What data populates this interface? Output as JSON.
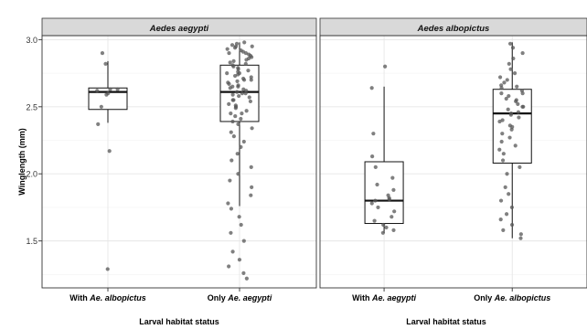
{
  "chart_data": {
    "type": "box",
    "ylabel": "Winglength (mm)",
    "ylim": [
      1.15,
      3.03
    ],
    "yticks": [
      1.5,
      2.0,
      2.5,
      3.0
    ],
    "grid": true,
    "panels": [
      {
        "title": "Aedes aegypti",
        "xlabel": "Larval habitat status",
        "groups": [
          {
            "label_prefix": "With ",
            "label_italic": "Ae. albopictus",
            "stats": {
              "whisker_low": 2.38,
              "q1": 2.48,
              "median": 2.61,
              "q3": 2.64,
              "whisker_high": 2.84
            },
            "points": [
              1.29,
              2.17,
              2.37,
              2.5,
              2.59,
              2.6,
              2.62,
              2.63,
              2.63,
              2.82,
              2.9
            ]
          },
          {
            "label_prefix": "Only ",
            "label_italic": "Ae. aegypti",
            "stats": {
              "whisker_low": 1.76,
              "q1": 2.39,
              "median": 2.61,
              "q3": 2.81,
              "whisker_high": 2.98
            },
            "points": [
              1.22,
              1.26,
              1.31,
              1.36,
              1.42,
              1.5,
              1.56,
              1.62,
              1.68,
              1.74,
              1.78,
              1.84,
              1.9,
              1.95,
              2.0,
              2.05,
              2.1,
              2.15,
              2.2,
              2.24,
              2.28,
              2.31,
              2.34,
              2.37,
              2.39,
              2.41,
              2.43,
              2.45,
              2.47,
              2.49,
              2.51,
              2.52,
              2.54,
              2.55,
              2.57,
              2.58,
              2.59,
              2.6,
              2.61,
              2.62,
              2.63,
              2.64,
              2.65,
              2.66,
              2.67,
              2.68,
              2.69,
              2.7,
              2.71,
              2.72,
              2.73,
              2.74,
              2.75,
              2.76,
              2.77,
              2.78,
              2.79,
              2.8,
              2.81,
              2.82,
              2.83,
              2.84,
              2.85,
              2.86,
              2.87,
              2.88,
              2.89,
              2.9,
              2.91,
              2.92,
              2.93,
              2.94,
              2.95,
              2.96,
              2.97,
              2.98,
              2.6,
              2.55,
              2.7,
              2.75,
              2.5,
              2.45,
              2.65,
              2.9,
              2.95
            ]
          }
        ]
      },
      {
        "title": "Aedes albopictus",
        "xlabel": "Larval habitat status",
        "groups": [
          {
            "label_prefix": "With ",
            "label_italic": "Ae. aegypti",
            "stats": {
              "whisker_low": 1.56,
              "q1": 1.63,
              "median": 1.8,
              "q3": 2.09,
              "whisker_high": 2.65
            },
            "points": [
              1.56,
              1.58,
              1.6,
              1.62,
              1.65,
              1.68,
              1.72,
              1.75,
              1.78,
              1.8,
              1.81,
              1.82,
              1.84,
              1.88,
              1.92,
              1.97,
              2.05,
              2.13,
              2.3,
              2.64,
              2.8
            ]
          },
          {
            "label_prefix": "Only ",
            "label_italic": "Ae. albopictus",
            "stats": {
              "whisker_low": 1.52,
              "q1": 2.08,
              "median": 2.45,
              "q3": 2.63,
              "whisker_high": 2.98
            },
            "points": [
              1.52,
              1.55,
              1.58,
              1.62,
              1.66,
              1.7,
              1.75,
              1.8,
              1.85,
              1.9,
              2.0,
              2.05,
              2.1,
              2.15,
              2.18,
              2.21,
              2.24,
              2.27,
              2.3,
              2.33,
              2.36,
              2.39,
              2.42,
              2.44,
              2.46,
              2.48,
              2.5,
              2.52,
              2.54,
              2.56,
              2.58,
              2.6,
              2.62,
              2.64,
              2.66,
              2.68,
              2.7,
              2.72,
              2.75,
              2.78,
              2.82,
              2.86,
              2.9,
              2.94,
              2.97,
              2.4,
              2.5,
              2.55,
              2.35,
              2.6,
              2.65,
              2.45
            ]
          }
        ]
      }
    ]
  }
}
